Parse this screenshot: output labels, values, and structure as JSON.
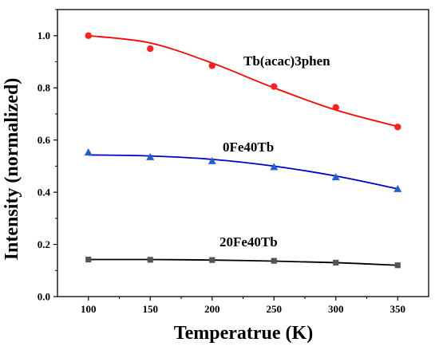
{
  "chart_data": {
    "type": "scatter",
    "xlabel": "Temperatrue (K)",
    "ylabel": "Intensity (normalized)",
    "xlim": [
      75,
      375
    ],
    "ylim": [
      0.0,
      1.1
    ],
    "xticks": [
      "100",
      "150",
      "200",
      "250",
      "300",
      "350"
    ],
    "yticks": [
      "0.0",
      "0.2",
      "0.4",
      "0.6",
      "0.8",
      "1.0"
    ],
    "grid": false,
    "legend": "none",
    "series": [
      {
        "name": "Tb(acac)3phen",
        "marker": "circle",
        "color": "#ff2020",
        "x": [
          100,
          150,
          200,
          250,
          300,
          350
        ],
        "y": [
          1.0,
          0.95,
          0.885,
          0.805,
          0.725,
          0.65
        ],
        "fit": [
          1.0,
          0.972,
          0.895,
          0.8,
          0.715,
          0.652
        ]
      },
      {
        "name": "0Fe40Tb",
        "marker": "triangle",
        "color": "#1c5fd6",
        "x": [
          100,
          150,
          200,
          250,
          300,
          350
        ],
        "y": [
          0.553,
          0.535,
          0.52,
          0.497,
          0.458,
          0.413
        ],
        "fit": [
          0.543,
          0.539,
          0.526,
          0.5,
          0.462,
          0.413
        ]
      },
      {
        "name": "20Fe40Tb",
        "marker": "square",
        "color": "#555555",
        "x": [
          100,
          150,
          200,
          250,
          300,
          350
        ],
        "y": [
          0.142,
          0.141,
          0.14,
          0.137,
          0.13,
          0.12
        ],
        "fit": [
          0.142,
          0.142,
          0.14,
          0.136,
          0.13,
          0.12
        ]
      }
    ],
    "annotations": [
      {
        "text": "Tb(acac)3phen",
        "series": 0
      },
      {
        "text": "0Fe40Tb",
        "series": 1
      },
      {
        "text": "20Fe40Tb",
        "series": 2
      }
    ],
    "line_colors": [
      "#ff0000",
      "#0000c8",
      "#000000"
    ]
  }
}
